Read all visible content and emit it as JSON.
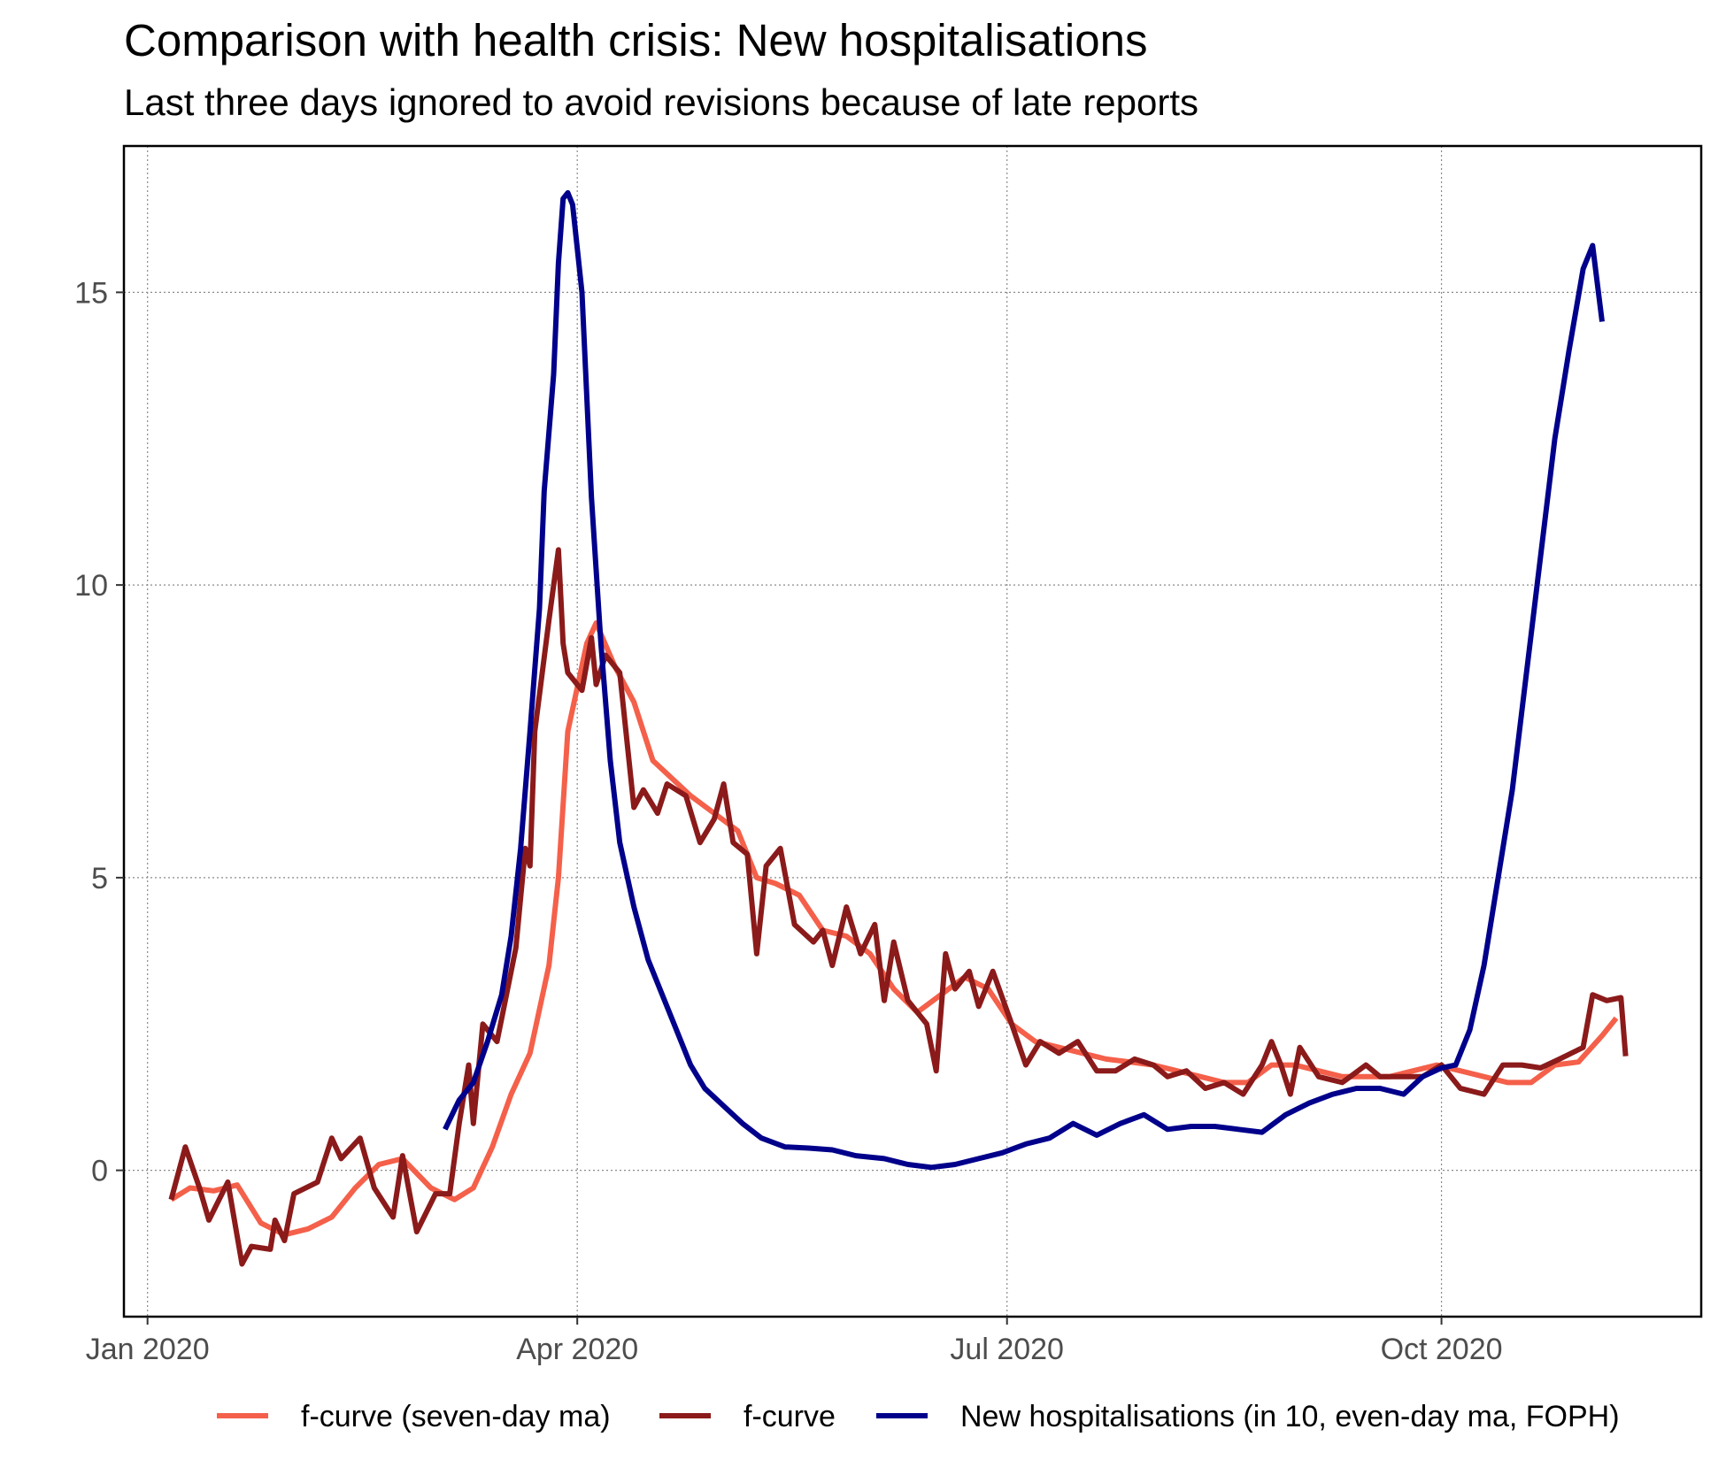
{
  "chart_data": {
    "type": "line",
    "title": "Comparison with health crisis: New hospitalisations",
    "subtitle": "Last three days ignored to avoid revisions because of late reports",
    "xlabel": "",
    "ylabel": "",
    "x_range": [
      "2019-12-27",
      "2020-11-25"
    ],
    "ylim": [
      -2.5,
      17.5
    ],
    "x_ticks": [
      {
        "date": "2020-01-01",
        "label": "Jan 2020"
      },
      {
        "date": "2020-04-01",
        "label": "Apr 2020"
      },
      {
        "date": "2020-07-01",
        "label": "Jul 2020"
      },
      {
        "date": "2020-10-01",
        "label": "Oct 2020"
      }
    ],
    "y_ticks": [
      0,
      5,
      10,
      15
    ],
    "grid": true,
    "legend_position": "bottom",
    "series": [
      {
        "name": "f-curve (seven-day ma)",
        "color": "#f4604a",
        "points": [
          [
            "2020-01-06",
            -0.5
          ],
          [
            "2020-01-10",
            -0.3
          ],
          [
            "2020-01-15",
            -0.35
          ],
          [
            "2020-01-20",
            -0.25
          ],
          [
            "2020-01-25",
            -0.9
          ],
          [
            "2020-01-30",
            -1.1
          ],
          [
            "2020-02-04",
            -1.0
          ],
          [
            "2020-02-09",
            -0.8
          ],
          [
            "2020-02-14",
            -0.3
          ],
          [
            "2020-02-19",
            0.1
          ],
          [
            "2020-02-24",
            0.2
          ],
          [
            "2020-03-01",
            -0.3
          ],
          [
            "2020-03-06",
            -0.5
          ],
          [
            "2020-03-10",
            -0.3
          ],
          [
            "2020-03-14",
            0.4
          ],
          [
            "2020-03-18",
            1.3
          ],
          [
            "2020-03-22",
            2.0
          ],
          [
            "2020-03-26",
            3.5
          ],
          [
            "2020-03-28",
            5.0
          ],
          [
            "2020-03-30",
            7.5
          ],
          [
            "2020-04-03",
            9.0
          ],
          [
            "2020-04-05",
            9.35
          ],
          [
            "2020-04-09",
            8.6
          ],
          [
            "2020-04-13",
            8.0
          ],
          [
            "2020-04-17",
            7.0
          ],
          [
            "2020-04-21",
            6.7
          ],
          [
            "2020-04-25",
            6.4
          ],
          [
            "2020-04-30",
            6.1
          ],
          [
            "2020-05-05",
            5.8
          ],
          [
            "2020-05-09",
            5.0
          ],
          [
            "2020-05-13",
            4.9
          ],
          [
            "2020-05-18",
            4.7
          ],
          [
            "2020-05-23",
            4.1
          ],
          [
            "2020-05-28",
            4.0
          ],
          [
            "2020-06-02",
            3.7
          ],
          [
            "2020-06-07",
            3.1
          ],
          [
            "2020-06-12",
            2.7
          ],
          [
            "2020-06-17",
            3.0
          ],
          [
            "2020-06-22",
            3.3
          ],
          [
            "2020-06-27",
            3.1
          ],
          [
            "2020-07-02",
            2.5
          ],
          [
            "2020-07-07",
            2.2
          ],
          [
            "2020-07-12",
            2.1
          ],
          [
            "2020-07-17",
            2.0
          ],
          [
            "2020-07-22",
            1.9
          ],
          [
            "2020-07-27",
            1.85
          ],
          [
            "2020-08-01",
            1.8
          ],
          [
            "2020-08-06",
            1.7
          ],
          [
            "2020-08-11",
            1.6
          ],
          [
            "2020-08-16",
            1.5
          ],
          [
            "2020-08-21",
            1.5
          ],
          [
            "2020-08-26",
            1.8
          ],
          [
            "2020-08-31",
            1.8
          ],
          [
            "2020-09-05",
            1.7
          ],
          [
            "2020-09-10",
            1.6
          ],
          [
            "2020-09-15",
            1.6
          ],
          [
            "2020-09-20",
            1.6
          ],
          [
            "2020-09-25",
            1.7
          ],
          [
            "2020-09-30",
            1.8
          ],
          [
            "2020-10-05",
            1.7
          ],
          [
            "2020-10-10",
            1.6
          ],
          [
            "2020-10-15",
            1.5
          ],
          [
            "2020-10-20",
            1.5
          ],
          [
            "2020-10-25",
            1.8
          ],
          [
            "2020-10-30",
            1.85
          ],
          [
            "2020-11-04",
            2.3
          ],
          [
            "2020-11-07",
            2.6
          ]
        ]
      },
      {
        "name": "f-curve",
        "color": "#8b1a1a",
        "points": [
          [
            "2020-01-06",
            -0.5
          ],
          [
            "2020-01-09",
            0.4
          ],
          [
            "2020-01-12",
            -0.3
          ],
          [
            "2020-01-14",
            -0.85
          ],
          [
            "2020-01-18",
            -0.2
          ],
          [
            "2020-01-21",
            -1.6
          ],
          [
            "2020-01-23",
            -1.3
          ],
          [
            "2020-01-27",
            -1.35
          ],
          [
            "2020-01-28",
            -0.85
          ],
          [
            "2020-01-30",
            -1.2
          ],
          [
            "2020-02-01",
            -0.4
          ],
          [
            "2020-02-06",
            -0.2
          ],
          [
            "2020-02-09",
            0.55
          ],
          [
            "2020-02-11",
            0.2
          ],
          [
            "2020-02-15",
            0.55
          ],
          [
            "2020-02-18",
            -0.3
          ],
          [
            "2020-02-22",
            -0.8
          ],
          [
            "2020-02-24",
            0.25
          ],
          [
            "2020-02-27",
            -1.05
          ],
          [
            "2020-03-02",
            -0.4
          ],
          [
            "2020-03-05",
            -0.4
          ],
          [
            "2020-03-07",
            0.8
          ],
          [
            "2020-03-09",
            1.8
          ],
          [
            "2020-03-10",
            0.8
          ],
          [
            "2020-03-12",
            2.5
          ],
          [
            "2020-03-15",
            2.2
          ],
          [
            "2020-03-17",
            3.0
          ],
          [
            "2020-03-19",
            3.8
          ],
          [
            "2020-03-21",
            5.5
          ],
          [
            "2020-03-22",
            5.2
          ],
          [
            "2020-03-23",
            7.5
          ],
          [
            "2020-03-26",
            9.4
          ],
          [
            "2020-03-28",
            10.6
          ],
          [
            "2020-03-29",
            9.0
          ],
          [
            "2020-03-30",
            8.5
          ],
          [
            "2020-04-02",
            8.2
          ],
          [
            "2020-04-04",
            9.1
          ],
          [
            "2020-04-05",
            8.3
          ],
          [
            "2020-04-07",
            8.8
          ],
          [
            "2020-04-10",
            8.5
          ],
          [
            "2020-04-13",
            6.2
          ],
          [
            "2020-04-15",
            6.5
          ],
          [
            "2020-04-18",
            6.1
          ],
          [
            "2020-04-20",
            6.6
          ],
          [
            "2020-04-24",
            6.4
          ],
          [
            "2020-04-27",
            5.6
          ],
          [
            "2020-04-30",
            6.0
          ],
          [
            "2020-05-02",
            6.6
          ],
          [
            "2020-05-04",
            5.6
          ],
          [
            "2020-05-07",
            5.4
          ],
          [
            "2020-05-09",
            3.7
          ],
          [
            "2020-05-11",
            5.2
          ],
          [
            "2020-05-14",
            5.5
          ],
          [
            "2020-05-17",
            4.2
          ],
          [
            "2020-05-21",
            3.9
          ],
          [
            "2020-05-23",
            4.1
          ],
          [
            "2020-05-25",
            3.5
          ],
          [
            "2020-05-28",
            4.5
          ],
          [
            "2020-05-31",
            3.7
          ],
          [
            "2020-06-03",
            4.2
          ],
          [
            "2020-06-05",
            2.9
          ],
          [
            "2020-06-07",
            3.9
          ],
          [
            "2020-06-10",
            2.9
          ],
          [
            "2020-06-14",
            2.5
          ],
          [
            "2020-06-16",
            1.7
          ],
          [
            "2020-06-18",
            3.7
          ],
          [
            "2020-06-20",
            3.1
          ],
          [
            "2020-06-23",
            3.4
          ],
          [
            "2020-06-25",
            2.8
          ],
          [
            "2020-06-28",
            3.4
          ],
          [
            "2020-07-02",
            2.5
          ],
          [
            "2020-07-05",
            1.8
          ],
          [
            "2020-07-08",
            2.2
          ],
          [
            "2020-07-12",
            2.0
          ],
          [
            "2020-07-16",
            2.2
          ],
          [
            "2020-07-20",
            1.7
          ],
          [
            "2020-07-24",
            1.7
          ],
          [
            "2020-07-28",
            1.9
          ],
          [
            "2020-08-01",
            1.8
          ],
          [
            "2020-08-04",
            1.6
          ],
          [
            "2020-08-08",
            1.7
          ],
          [
            "2020-08-12",
            1.4
          ],
          [
            "2020-08-16",
            1.5
          ],
          [
            "2020-08-20",
            1.3
          ],
          [
            "2020-08-24",
            1.8
          ],
          [
            "2020-08-26",
            2.2
          ],
          [
            "2020-08-28",
            1.8
          ],
          [
            "2020-08-30",
            1.3
          ],
          [
            "2020-09-01",
            2.1
          ],
          [
            "2020-09-05",
            1.6
          ],
          [
            "2020-09-10",
            1.5
          ],
          [
            "2020-09-15",
            1.8
          ],
          [
            "2020-09-18",
            1.6
          ],
          [
            "2020-09-22",
            1.6
          ],
          [
            "2020-09-27",
            1.6
          ],
          [
            "2020-10-01",
            1.8
          ],
          [
            "2020-10-05",
            1.4
          ],
          [
            "2020-10-10",
            1.3
          ],
          [
            "2020-10-14",
            1.8
          ],
          [
            "2020-10-18",
            1.8
          ],
          [
            "2020-10-22",
            1.75
          ],
          [
            "2020-10-26",
            1.9
          ],
          [
            "2020-10-31",
            2.1
          ],
          [
            "2020-11-02",
            3.0
          ],
          [
            "2020-11-05",
            2.9
          ],
          [
            "2020-11-08",
            2.95
          ],
          [
            "2020-11-09",
            1.95
          ]
        ]
      },
      {
        "name": "New hospitalisations (in 10, even-day ma, FOPH)",
        "color": "#00008b",
        "points": [
          [
            "2020-03-04",
            0.7
          ],
          [
            "2020-03-07",
            1.2
          ],
          [
            "2020-03-10",
            1.5
          ],
          [
            "2020-03-13",
            2.2
          ],
          [
            "2020-03-16",
            3.0
          ],
          [
            "2020-03-18",
            4.0
          ],
          [
            "2020-03-20",
            5.5
          ],
          [
            "2020-03-22",
            7.5
          ],
          [
            "2020-03-24",
            9.6
          ],
          [
            "2020-03-25",
            11.6
          ],
          [
            "2020-03-27",
            13.6
          ],
          [
            "2020-03-28",
            15.5
          ],
          [
            "2020-03-29",
            16.6
          ],
          [
            "2020-03-30",
            16.7
          ],
          [
            "2020-03-31",
            16.5
          ],
          [
            "2020-04-02",
            15.0
          ],
          [
            "2020-04-04",
            11.5
          ],
          [
            "2020-04-06",
            9.0
          ],
          [
            "2020-04-08",
            7.0
          ],
          [
            "2020-04-10",
            5.6
          ],
          [
            "2020-04-13",
            4.5
          ],
          [
            "2020-04-16",
            3.6
          ],
          [
            "2020-04-19",
            3.0
          ],
          [
            "2020-04-22",
            2.4
          ],
          [
            "2020-04-25",
            1.8
          ],
          [
            "2020-04-28",
            1.4
          ],
          [
            "2020-05-02",
            1.1
          ],
          [
            "2020-05-06",
            0.8
          ],
          [
            "2020-05-10",
            0.55
          ],
          [
            "2020-05-15",
            0.4
          ],
          [
            "2020-05-20",
            0.38
          ],
          [
            "2020-05-25",
            0.35
          ],
          [
            "2020-05-30",
            0.25
          ],
          [
            "2020-06-05",
            0.2
          ],
          [
            "2020-06-10",
            0.1
          ],
          [
            "2020-06-15",
            0.05
          ],
          [
            "2020-06-20",
            0.1
          ],
          [
            "2020-06-25",
            0.2
          ],
          [
            "2020-06-30",
            0.3
          ],
          [
            "2020-07-05",
            0.45
          ],
          [
            "2020-07-10",
            0.55
          ],
          [
            "2020-07-15",
            0.8
          ],
          [
            "2020-07-20",
            0.6
          ],
          [
            "2020-07-25",
            0.8
          ],
          [
            "2020-07-30",
            0.95
          ],
          [
            "2020-08-04",
            0.7
          ],
          [
            "2020-08-09",
            0.75
          ],
          [
            "2020-08-14",
            0.75
          ],
          [
            "2020-08-19",
            0.7
          ],
          [
            "2020-08-24",
            0.65
          ],
          [
            "2020-08-29",
            0.95
          ],
          [
            "2020-09-03",
            1.15
          ],
          [
            "2020-09-08",
            1.3
          ],
          [
            "2020-09-13",
            1.4
          ],
          [
            "2020-09-18",
            1.4
          ],
          [
            "2020-09-23",
            1.3
          ],
          [
            "2020-09-27",
            1.6
          ],
          [
            "2020-10-01",
            1.75
          ],
          [
            "2020-10-04",
            1.8
          ],
          [
            "2020-10-07",
            2.4
          ],
          [
            "2020-10-10",
            3.5
          ],
          [
            "2020-10-13",
            5.0
          ],
          [
            "2020-10-16",
            6.5
          ],
          [
            "2020-10-19",
            8.5
          ],
          [
            "2020-10-22",
            10.5
          ],
          [
            "2020-10-25",
            12.5
          ],
          [
            "2020-10-28",
            14.0
          ],
          [
            "2020-10-31",
            15.4
          ],
          [
            "2020-11-02",
            15.8
          ],
          [
            "2020-11-04",
            14.5
          ]
        ]
      }
    ]
  }
}
